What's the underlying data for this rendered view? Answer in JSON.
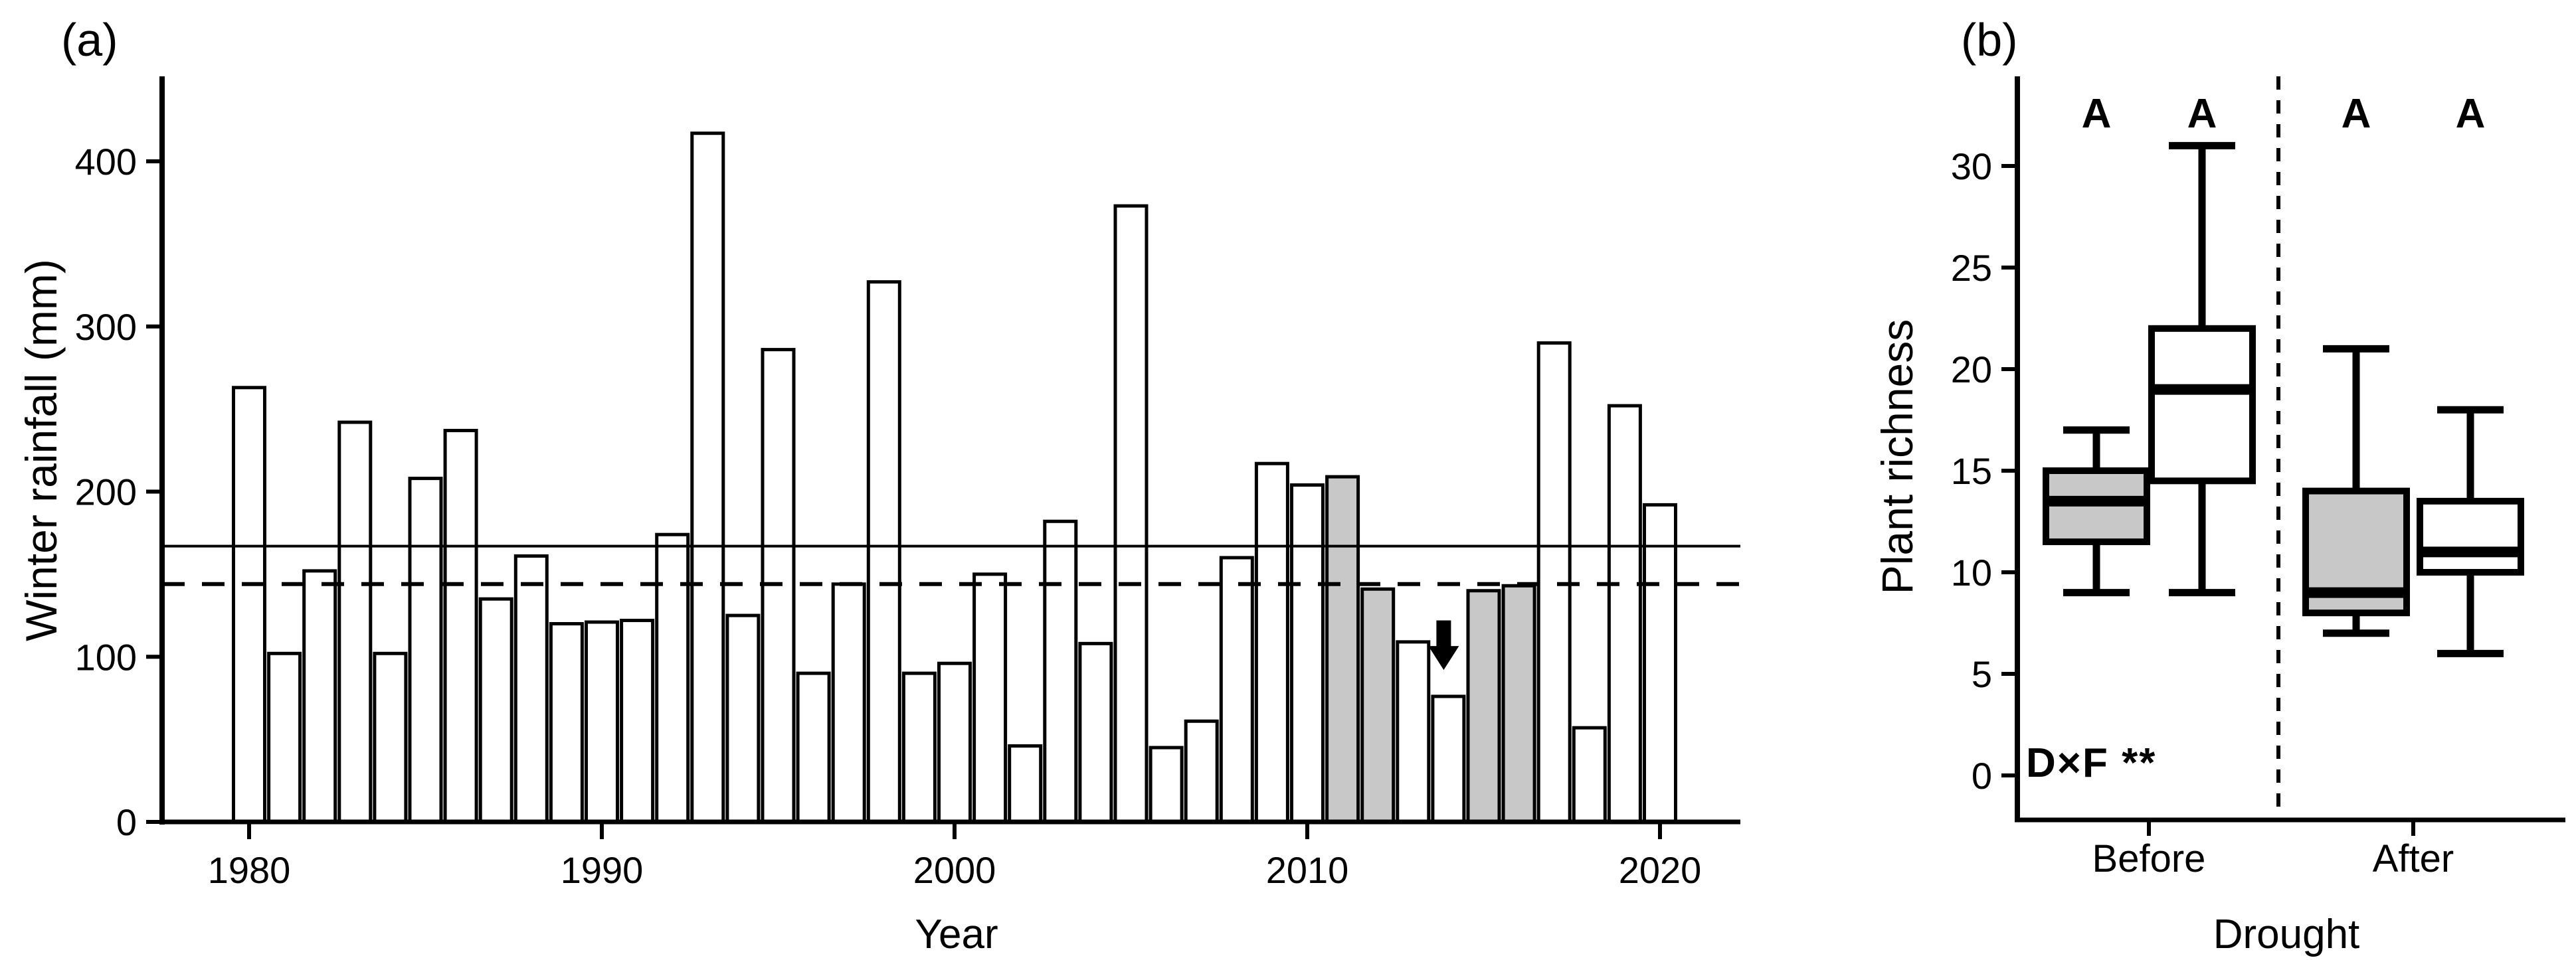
{
  "panels": {
    "a": {
      "label": "(a)",
      "xlabel": "Year",
      "ylabel": "Winter rainfall (mm)"
    },
    "b": {
      "label": "(b)",
      "xlabel": "Drought",
      "ylabel": "Plant richness",
      "annotation": "D×F **",
      "group_labels": [
        "Before",
        "After"
      ]
    }
  },
  "colors": {
    "bar_white": "#ffffff",
    "bar_gray": "#c8c8c8",
    "stroke": "#000000"
  },
  "chart_data": [
    {
      "panel": "a",
      "type": "bar",
      "xlabel": "Year",
      "ylabel": "Winter rainfall (mm)",
      "ylim": [
        0,
        450
      ],
      "yticks": [
        0,
        100,
        200,
        300,
        400
      ],
      "xticks": [
        1980,
        1990,
        2000,
        2010,
        2020
      ],
      "x": [
        1980,
        1981,
        1982,
        1983,
        1984,
        1985,
        1986,
        1987,
        1988,
        1989,
        1990,
        1991,
        1992,
        1993,
        1994,
        1995,
        1996,
        1997,
        1998,
        1999,
        2000,
        2001,
        2002,
        2003,
        2004,
        2005,
        2006,
        2007,
        2008,
        2009,
        2010,
        2011,
        2012,
        2013,
        2014,
        2015,
        2016,
        2017,
        2018,
        2019,
        2020
      ],
      "values": [
        263,
        102,
        152,
        242,
        102,
        208,
        237,
        135,
        161,
        120,
        121,
        122,
        174,
        417,
        125,
        286,
        90,
        144,
        327,
        90,
        96,
        150,
        46,
        182,
        108,
        373,
        45,
        61,
        160,
        217,
        204,
        209,
        141,
        109,
        76,
        140,
        143,
        290,
        57,
        252,
        192
      ],
      "gray_bar_years": [
        2011,
        2012,
        2015,
        2016
      ],
      "bar_fill": "#ffffff",
      "highlight_fill": "#c8c8c8",
      "grid": false,
      "reference_lines": [
        {
          "style": "solid",
          "value": 167
        },
        {
          "style": "dashed",
          "value": 144
        }
      ],
      "arrow_annotation": {
        "x": 2014,
        "from_value": 122,
        "to_value": 92
      }
    },
    {
      "panel": "b",
      "type": "boxplot",
      "xlabel": "Drought",
      "ylabel": "Plant richness",
      "ylim": [
        0,
        33
      ],
      "yticks": [
        0,
        5,
        10,
        15,
        20,
        25,
        30
      ],
      "groups": [
        "Before",
        "After"
      ],
      "boxes": [
        {
          "group": "Before",
          "fill": "#c8c8c8",
          "letter": "A",
          "whisker_low": 9,
          "q1": 11.5,
          "median": 13.5,
          "q3": 15,
          "whisker_high": 17
        },
        {
          "group": "Before",
          "fill": "#ffffff",
          "letter": "A",
          "whisker_low": 9,
          "q1": 14.5,
          "median": 19,
          "q3": 22,
          "whisker_high": 31
        },
        {
          "group": "After",
          "fill": "#c8c8c8",
          "letter": "A",
          "whisker_low": 7,
          "q1": 8,
          "median": 9,
          "q3": 14,
          "whisker_high": 21
        },
        {
          "group": "After",
          "fill": "#ffffff",
          "letter": "A",
          "whisker_low": 6,
          "q1": 10,
          "median": 11,
          "q3": 13.5,
          "whisker_high": 18
        }
      ],
      "group_divider": {
        "style": "dashed"
      },
      "annotation": "D×F **",
      "grid": false
    }
  ]
}
